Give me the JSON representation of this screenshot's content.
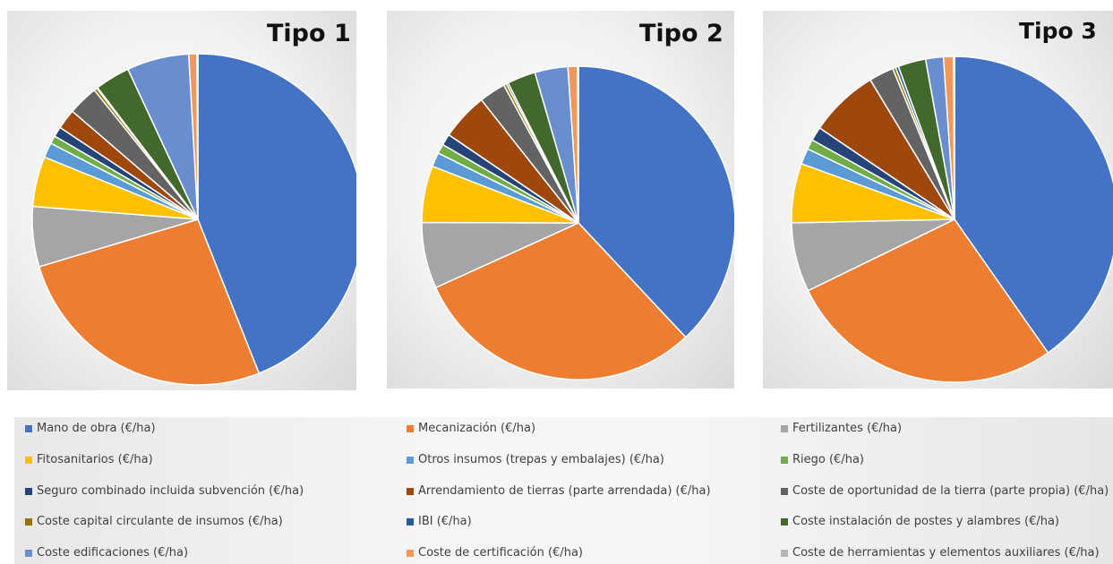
{
  "legend": [
    {
      "label": "Mano de obra (€/ha)",
      "color": "#4472C4"
    },
    {
      "label": "Mecanización (€/ha)",
      "color": "#ED7D31"
    },
    {
      "label": "Fertilizantes (€/ha)",
      "color": "#A5A5A5"
    },
    {
      "label": "Fitosanitarios (€/ha)",
      "color": "#FFC000"
    },
    {
      "label": "Otros insumos (trepas y embalajes) (€/ha)",
      "color": "#5B9BD5"
    },
    {
      "label": "Riego (€/ha)",
      "color": "#70AD47"
    },
    {
      "label": "Seguro combinado incluida subvención (€/ha)",
      "color": "#264478"
    },
    {
      "label": "Arrendamiento de tierras (parte arrendada) (€/ha)",
      "color": "#9E480E"
    },
    {
      "label": "Coste de oportunidad de la tierra (parte propia) (€/ha)",
      "color": "#636363"
    },
    {
      "label": "Coste capital circulante de insumos (€/ha)",
      "color": "#997300"
    },
    {
      "label": "IBI (€/ha)",
      "color": "#255E91"
    },
    {
      "label": "Coste instalación de postes y alambres (€/ha)",
      "color": "#43682B"
    },
    {
      "label": "Coste edificaciones (€/ha)",
      "color": "#698ED0"
    },
    {
      "label": "Coste de certificación (€/ha)",
      "color": "#F1975A"
    },
    {
      "label": "Coste de herramientas y elementos auxiliares (€/ha)",
      "color": "#B7B7B7"
    }
  ],
  "chart_data": [
    {
      "type": "pie",
      "title": "Tipo 1",
      "categories": [
        "Mano de obra (€/ha)",
        "Mecanización (€/ha)",
        "Fertilizantes (€/ha)",
        "Fitosanitarios (€/ha)",
        "Otros insumos (trepas y embalajes) (€/ha)",
        "Riego (€/ha)",
        "Seguro combinado incluida subvención (€/ha)",
        "Arrendamiento de tierras (parte arrendada) (€/ha)",
        "Coste de oportunidad de la tierra (parte propia) (€/ha)",
        "Coste capital circulante de insumos (€/ha)",
        "IBI (€/ha)",
        "Coste instalación de postes y alambres (€/ha)",
        "Coste edificaciones (€/ha)",
        "Coste de certificación (€/ha)",
        "Coste de herramientas y elementos auxiliares (€/ha)"
      ],
      "values": [
        45.0,
        27.0,
        6.0,
        5.0,
        1.5,
        0.8,
        1.0,
        2.0,
        3.0,
        0.3,
        0.1,
        3.5,
        6.2,
        0.8,
        0.1
      ]
    },
    {
      "type": "pie",
      "title": "Tipo 2",
      "categories": [
        "Mano de obra (€/ha)",
        "Mecanización (€/ha)",
        "Fertilizantes (€/ha)",
        "Fitosanitarios (€/ha)",
        "Otros insumos (trepas y embalajes) (€/ha)",
        "Riego (€/ha)",
        "Seguro combinado incluida subvención (€/ha)",
        "Arrendamiento de tierras (parte arrendada) (€/ha)",
        "Coste de oportunidad de la tierra (parte propia) (€/ha)",
        "Coste capital circulante de insumos (€/ha)",
        "IBI (€/ha)",
        "Coste instalación de postes y alambres (€/ha)",
        "Coste edificaciones (€/ha)",
        "Coste de certificación (€/ha)",
        "Coste de herramientas y elementos auxiliares (€/ha)"
      ],
      "values": [
        39.0,
        31.0,
        7.0,
        6.0,
        1.5,
        1.0,
        1.2,
        5.0,
        2.8,
        0.3,
        0.2,
        3.0,
        3.5,
        1.0,
        0.1
      ]
    },
    {
      "type": "pie",
      "title": "Tipo 3",
      "categories": [
        "Mano de obra (€/ha)",
        "Mecanización (€/ha)",
        "Fertilizantes (€/ha)",
        "Fitosanitarios (€/ha)",
        "Otros insumos (trepas y embalajes) (€/ha)",
        "Riego (€/ha)",
        "Seguro combinado incluida subvención (€/ha)",
        "Arrendamiento de tierras (parte arrendada) (€/ha)",
        "Coste de oportunidad de la tierra (parte propia) (€/ha)",
        "Coste capital circulante de insumos (€/ha)",
        "IBI (€/ha)",
        "Coste instalación de postes y alambres (€/ha)",
        "Coste edificaciones (€/ha)",
        "Coste de certificación (€/ha)",
        "Coste de herramientas y elementos auxiliares (€/ha)"
      ],
      "values": [
        41.0,
        28.0,
        7.0,
        6.0,
        1.6,
        1.0,
        1.4,
        7.0,
        2.5,
        0.3,
        0.3,
        2.8,
        1.8,
        1.0,
        0.1
      ]
    }
  ]
}
